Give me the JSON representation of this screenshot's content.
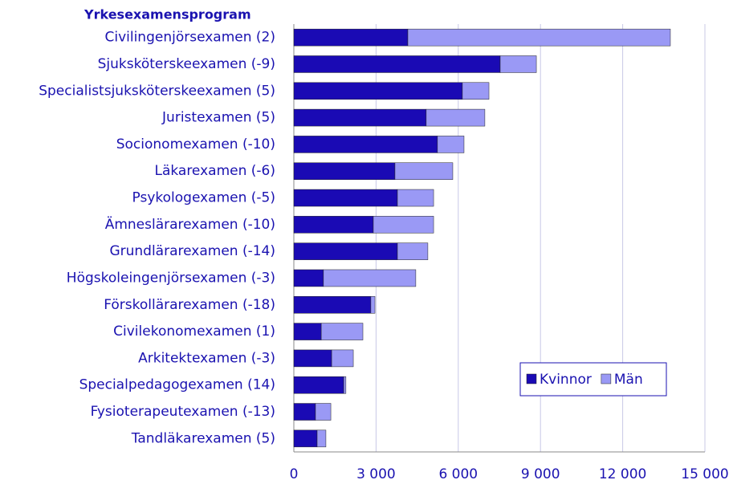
{
  "chart_data": {
    "type": "stacked-bar-horizontal",
    "title": "Yrkesexamensprogram",
    "categories": [
      "Civilingenjörsexamen (2)",
      "Sjuksköterskeexamen (-9)",
      "Specialistsjuksköterskeexamen (5)",
      "Juristexamen (5)",
      "Socionomexamen (-10)",
      "Läkarexamen (-6)",
      "Psykologexamen (-5)",
      "Ämneslärarexamen (-10)",
      "Grundlärarexamen (-14)",
      "Högskoleingenjörsexamen (-3)",
      "Förskollärarexamen (-18)",
      "Civilekonomexamen (1)",
      "Arkitektexamen (-3)",
      "Specialpedagogexamen (14)",
      "Fysioterapeutexamen (-13)",
      "Tandläkarexamen (5)"
    ],
    "series": [
      {
        "name": "Kvinnor",
        "color": "#1a0ab4",
        "values": [
          4160,
          7530,
          6150,
          4830,
          5240,
          3690,
          3780,
          2900,
          3780,
          1080,
          2810,
          1000,
          1380,
          1820,
          790,
          850
        ]
      },
      {
        "name": "Män",
        "color": "#9a99f5",
        "values": [
          9580,
          1320,
          970,
          2140,
          970,
          2110,
          1320,
          2200,
          1110,
          3370,
          150,
          1520,
          790,
          80,
          560,
          320
        ]
      }
    ],
    "xlim": [
      0,
      15000
    ],
    "xticks": [
      0,
      {
        "value": 3000,
        "label": "3 000"
      },
      {
        "value": 6000,
        "label": "6 000"
      },
      {
        "value": 9000,
        "label": "9 000"
      },
      {
        "value": 12000,
        "label": "12 000"
      },
      {
        "value": 15000,
        "label": "15 000"
      }
    ],
    "grid": true,
    "legend": "lower-right"
  }
}
